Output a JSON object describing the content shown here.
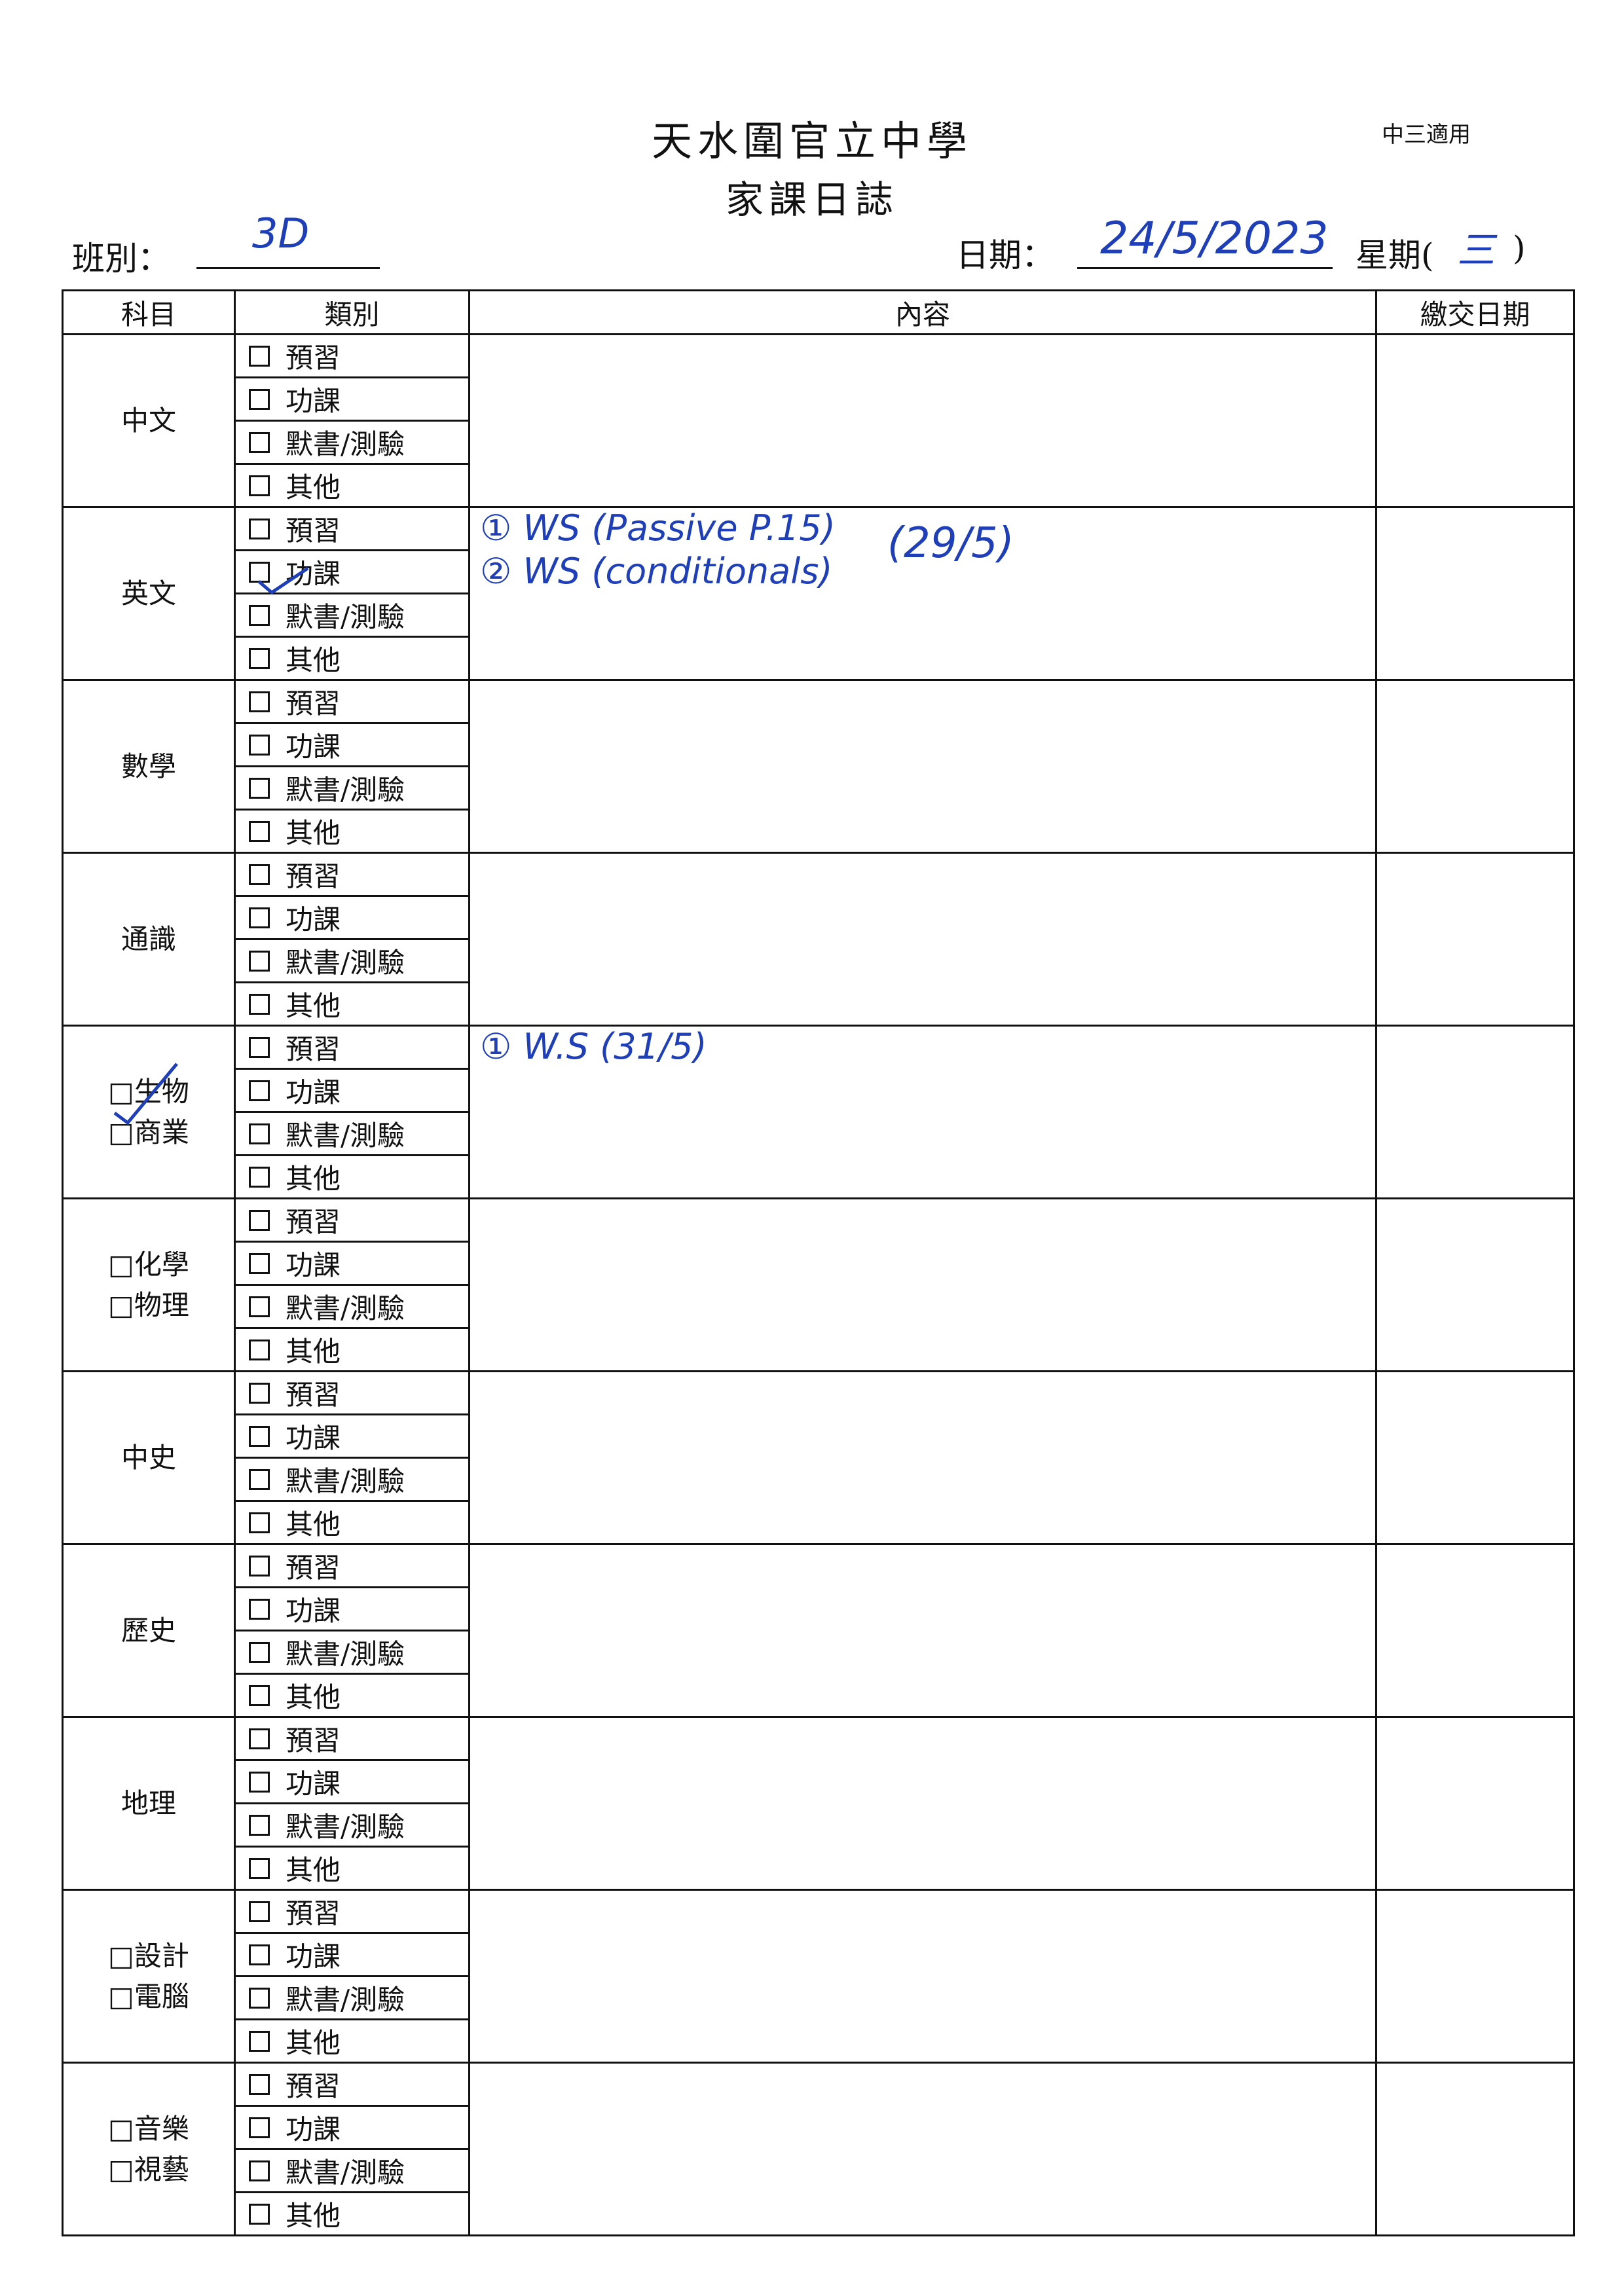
{
  "header": {
    "school": "天水圍官立中學",
    "title": "家課日誌",
    "note": "中三適用",
    "class_label": "班別：",
    "class_value": "3D",
    "date_label": "日期：",
    "date_value": "24/5/2023",
    "weekday_label": "星期(",
    "weekday_value": "三",
    "weekday_close": ")"
  },
  "table": {
    "columns": [
      "科目",
      "類別",
      "內容",
      "繳交日期"
    ],
    "categories": [
      "預習",
      "功課",
      "默書/測驗",
      "其他"
    ],
    "rows": [
      {
        "subject": [
          "中文"
        ]
      },
      {
        "subject": [
          "英文"
        ],
        "content": [
          "① WS (Passive P.15)",
          "② WS (conditionals)"
        ],
        "content_note": "(29/5)"
      },
      {
        "subject": [
          "數學"
        ]
      },
      {
        "subject": [
          "通識"
        ]
      },
      {
        "subject": [
          "□生物",
          "□商業"
        ],
        "content": [
          "① W.S (31/5)"
        ]
      },
      {
        "subject": [
          "□化學",
          "□物理"
        ]
      },
      {
        "subject": [
          "中史"
        ]
      },
      {
        "subject": [
          "歷史"
        ]
      },
      {
        "subject": [
          "地理"
        ]
      },
      {
        "subject": [
          "□設計",
          "□電腦"
        ]
      },
      {
        "subject": [
          "□音樂",
          "□視藝"
        ]
      }
    ]
  }
}
